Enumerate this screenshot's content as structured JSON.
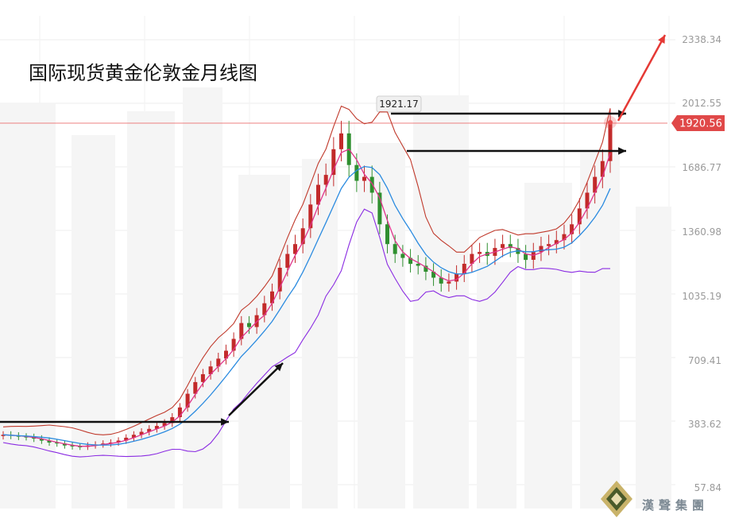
{
  "chart_data": {
    "type": "candlestick",
    "title": "国际现货黄金伦敦金月线图",
    "y_ticks": [
      "2338.34",
      "2012.55",
      "1686.77",
      "1360.98",
      "1035.19",
      "709.41",
      "383.62",
      "57.84"
    ],
    "current_price": "1920.56",
    "peak_label": "1921.17",
    "brand": "漢聲集團",
    "colors": {
      "up": "#c22a2a",
      "down": "#2f8f2f",
      "upper_band": "#c0392b",
      "lower_band": "#8a2be2",
      "ma_fast": "#e0338a",
      "ma_slow": "#2b8be0",
      "current_line": "#e84c4c",
      "current_tag": "#e04848",
      "arrow_black": "#111111",
      "arrow_red": "#e53935"
    },
    "series_close": [
      330,
      325,
      320,
      318,
      310,
      300,
      290,
      285,
      275,
      270,
      268,
      275,
      280,
      285,
      290,
      300,
      315,
      330,
      345,
      360,
      375,
      390,
      420,
      470,
      540,
      600,
      640,
      680,
      720,
      760,
      820,
      900,
      880,
      940,
      1000,
      1060,
      1180,
      1250,
      1300,
      1380,
      1500,
      1600,
      1650,
      1780,
      1860,
      1700,
      1620,
      1640,
      1560,
      1400,
      1300,
      1250,
      1230,
      1200,
      1190,
      1160,
      1130,
      1100,
      1110,
      1150,
      1200,
      1250,
      1260,
      1240,
      1280,
      1300,
      1280,
      1250,
      1220,
      1260,
      1290,
      1300,
      1320,
      1350,
      1400,
      1480,
      1560,
      1640,
      1720,
      1920
    ]
  }
}
